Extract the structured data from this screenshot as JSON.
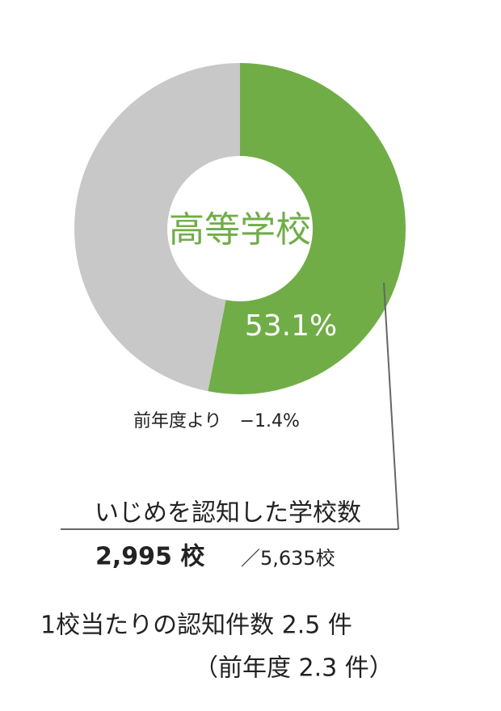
{
  "chart_data": {
    "type": "pie",
    "donut": true,
    "title": "高等学校",
    "categories": [
      "高等学校",
      null
    ],
    "values": [
      53.1,
      46.9
    ],
    "value_labels": [
      "53.1%",
      null
    ],
    "colors": [
      "#70ad47",
      "#c8c8c8"
    ],
    "annotations": {
      "change": "前年度より　−1.4%",
      "heading": "いじめを認知した学校数",
      "count": "2,995 校",
      "total": "／5,635校",
      "per_school": "1校当たりの認知件数  2.5 件",
      "previous": "（前年度  2.3 件）"
    }
  }
}
